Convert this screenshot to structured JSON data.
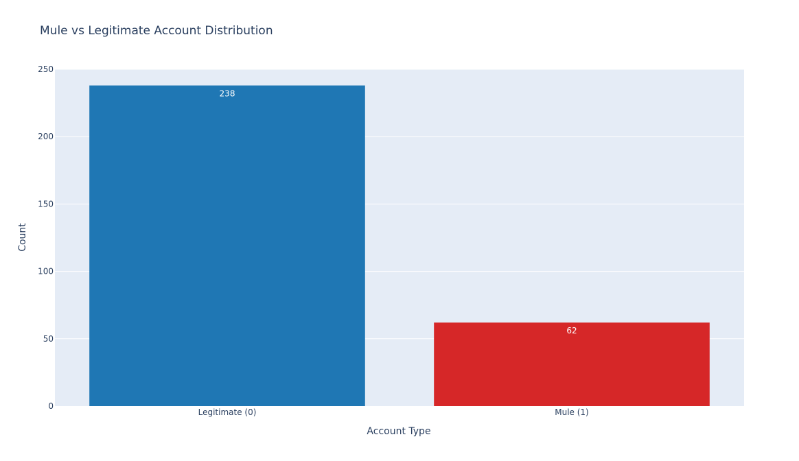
{
  "chart_data": {
    "type": "bar",
    "title": "Mule vs Legitimate Account Distribution",
    "xlabel": "Account Type",
    "ylabel": "Count",
    "categories": [
      "Legitimate (0)",
      "Mule (1)"
    ],
    "values": [
      238,
      62
    ],
    "data_labels": [
      "238",
      "62"
    ],
    "colors": [
      "#1f77b4",
      "#d62728"
    ],
    "ylim": [
      0,
      250
    ],
    "yticks": [
      0,
      50,
      100,
      150,
      200,
      250
    ],
    "ytick_labels": [
      "0",
      "50",
      "100",
      "150",
      "200",
      "250"
    ],
    "grid": true,
    "legend": "none",
    "plot_bg": "#e5ecf6"
  }
}
